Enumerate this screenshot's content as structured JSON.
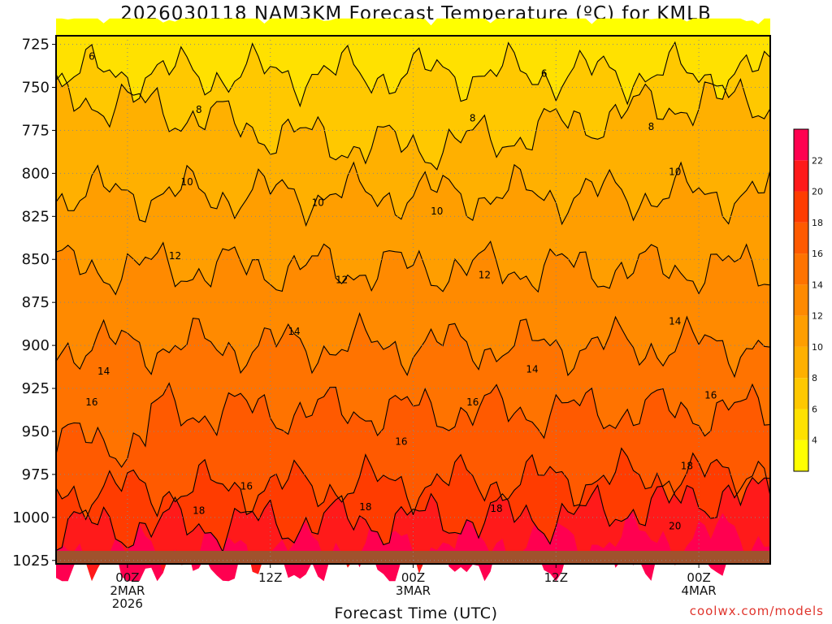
{
  "chart_data": {
    "type": "heatmap",
    "title": "2026030118 NAM3KM Forecast Temperature (ºC) for KMLB",
    "xlabel": "Forecast Time (UTC)",
    "ylabel": "",
    "y_ticks": [
      725,
      750,
      775,
      800,
      825,
      850,
      875,
      900,
      925,
      950,
      975,
      1000,
      1025
    ],
    "ylim": [
      1027,
      720
    ],
    "y_scale": "pressure (inverted, hPa)",
    "x_ticks": [
      {
        "hour": 6,
        "label": [
          "00Z",
          "2MAR",
          "2026"
        ]
      },
      {
        "hour": 18,
        "label": [
          "12Z"
        ]
      },
      {
        "hour": 30,
        "label": [
          "00Z",
          "3MAR"
        ]
      },
      {
        "hour": 42,
        "label": [
          "12Z"
        ]
      },
      {
        "hour": 54,
        "label": [
          "00Z",
          "4MAR"
        ]
      }
    ],
    "xlim_forecast_hours": [
      0,
      60
    ],
    "grid": true,
    "colorbar": {
      "levels": [
        2,
        4,
        6,
        8,
        10,
        12,
        14,
        16,
        18,
        20,
        22,
        24
      ],
      "tick_labels": [
        "4",
        "6",
        "8",
        "10",
        "12",
        "14",
        "16",
        "18",
        "20",
        "22"
      ],
      "colors": [
        "#ffff00",
        "#ffe100",
        "#ffc800",
        "#ffb000",
        "#ff9e00",
        "#ff8a00",
        "#ff7300",
        "#ff5a00",
        "#ff3c00",
        "#ff1a1a",
        "#ff0050"
      ]
    },
    "contour_labels": [
      {
        "text": "6",
        "hour": 3,
        "p": 732
      },
      {
        "text": "6",
        "hour": 41,
        "p": 742
      },
      {
        "text": "8",
        "hour": 12,
        "p": 763
      },
      {
        "text": "8",
        "hour": 35,
        "p": 768
      },
      {
        "text": "8",
        "hour": 50,
        "p": 773
      },
      {
        "text": "10",
        "hour": 11,
        "p": 805
      },
      {
        "text": "10",
        "hour": 22,
        "p": 817
      },
      {
        "text": "10",
        "hour": 32,
        "p": 822
      },
      {
        "text": "10",
        "hour": 52,
        "p": 799
      },
      {
        "text": "12",
        "hour": 10,
        "p": 848
      },
      {
        "text": "12",
        "hour": 24,
        "p": 862
      },
      {
        "text": "12",
        "hour": 36,
        "p": 859
      },
      {
        "text": "14",
        "hour": 20,
        "p": 892
      },
      {
        "text": "14",
        "hour": 4,
        "p": 915
      },
      {
        "text": "14",
        "hour": 40,
        "p": 914
      },
      {
        "text": "14",
        "hour": 52,
        "p": 886
      },
      {
        "text": "16",
        "hour": 3,
        "p": 933
      },
      {
        "text": "16",
        "hour": 35,
        "p": 933
      },
      {
        "text": "16",
        "hour": 29,
        "p": 956
      },
      {
        "text": "16",
        "hour": 16,
        "p": 982
      },
      {
        "text": "16",
        "hour": 55,
        "p": 929
      },
      {
        "text": "18",
        "hour": 12,
        "p": 996
      },
      {
        "text": "18",
        "hour": 26,
        "p": 994
      },
      {
        "text": "18",
        "hour": 37,
        "p": 995
      },
      {
        "text": "18",
        "hour": 53,
        "p": 970
      },
      {
        "text": "20",
        "hour": 52,
        "p": 1005
      }
    ],
    "ground_color": "#a0522d"
  },
  "credit": "coolwx.com/models"
}
